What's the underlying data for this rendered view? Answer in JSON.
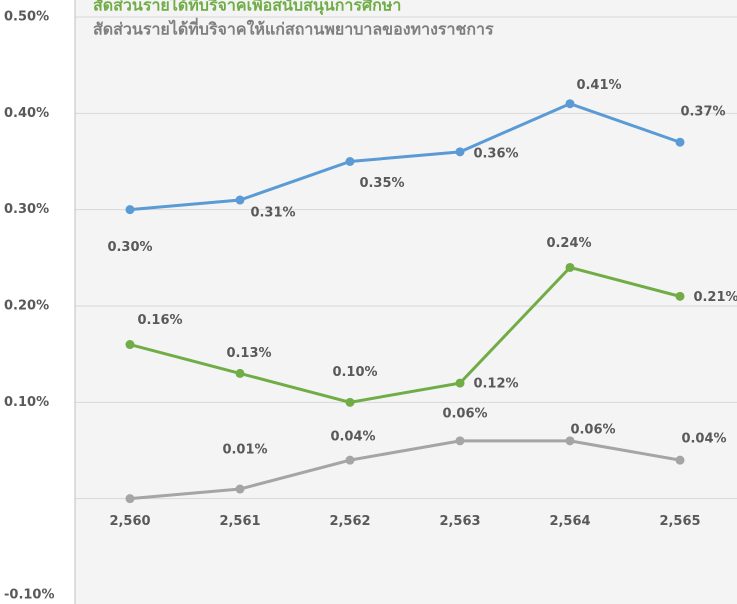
{
  "chart_data": {
    "type": "line",
    "categories": [
      "2,560",
      "2,561",
      "2,562",
      "2,563",
      "2,564",
      "2,565"
    ],
    "series": [
      {
        "color": "#5b9bd5",
        "values": [
          0.3,
          0.31,
          0.35,
          0.36,
          0.41,
          0.37
        ],
        "value_labels": [
          "0.30%",
          "0.31%",
          "0.35%",
          "0.36%",
          "0.41%",
          "0.37%"
        ]
      },
      {
        "name": "สัดส่วนรายได้ที่บริจาคเพื่อสนับสนุนการศึกษา",
        "color": "#70ad47",
        "values": [
          0.16,
          0.13,
          0.1,
          0.12,
          0.24,
          0.21
        ],
        "value_labels": [
          "0.16%",
          "0.13%",
          "0.10%",
          "0.12%",
          "0.24%",
          "0.21%"
        ]
      },
      {
        "name": "สัดส่วนรายได้ที่บริจาคให้แก่สถานพยาบาลของทางราชการ",
        "color": "#a5a5a5",
        "values": [
          0.0,
          0.01,
          0.04,
          0.06,
          0.06,
          0.04
        ],
        "value_labels": [
          null,
          "0.01%",
          "0.04%",
          "0.06%",
          "0.06%",
          "0.04%"
        ]
      }
    ],
    "ylim": [
      -0.1,
      0.5
    ],
    "yticks": [
      {
        "value": -0.1,
        "label": "-0.10%"
      },
      {
        "value": 0,
        "label": null
      },
      {
        "value": 0.1,
        "label": "0.10%"
      },
      {
        "value": 0.2,
        "label": "0.20%"
      },
      {
        "value": 0.3,
        "label": "0.30%"
      },
      {
        "value": 0.4,
        "label": "0.40%"
      },
      {
        "value": 0.5,
        "label": "0.50%"
      }
    ],
    "grid": true
  }
}
